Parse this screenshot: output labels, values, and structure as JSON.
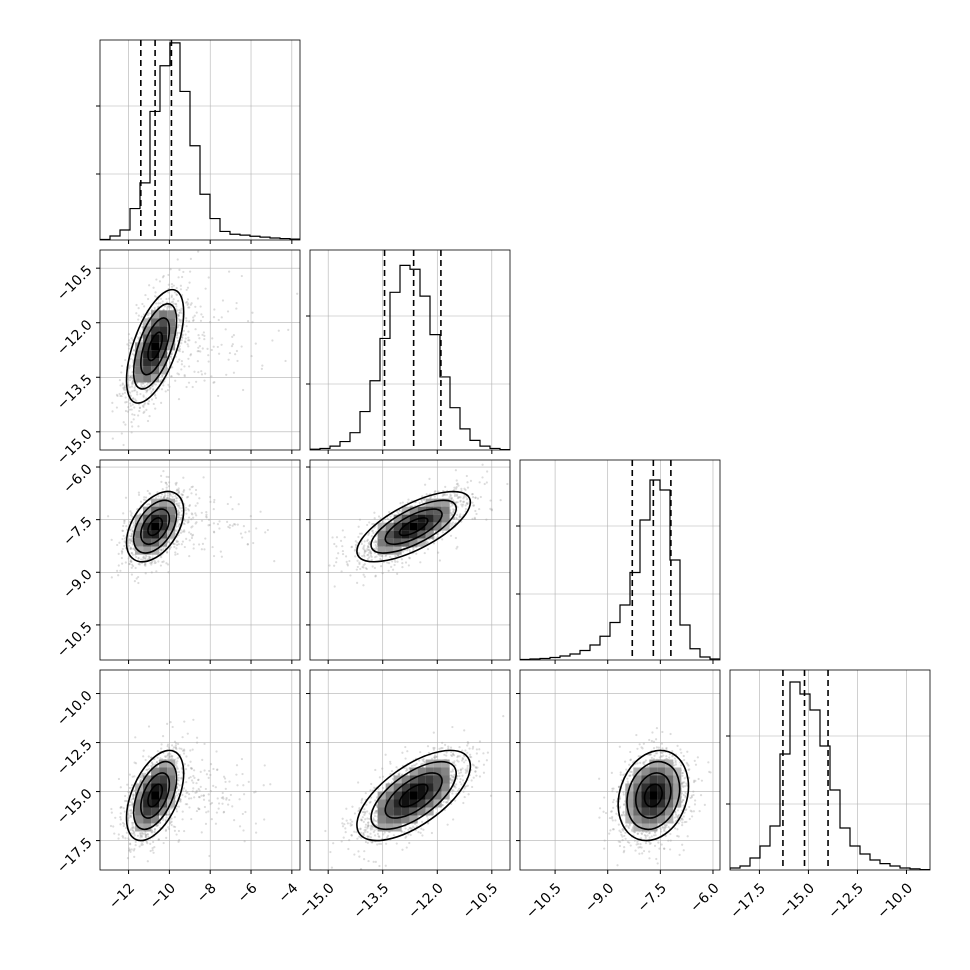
{
  "figure": {
    "background": "#ffffff",
    "point_color": "#9a9a9a",
    "line_color": "#000000",
    "grid_color": "#b0b0b0"
  },
  "chart_data": {
    "type": "corner",
    "grid": true,
    "n_params": 4,
    "diag_ticks": {
      "0": [
        -12,
        -10,
        -8,
        -6,
        -4
      ],
      "1": [
        -15.0,
        -13.5,
        -12.0,
        -10.5
      ],
      "2": [
        -10.5,
        -9.0,
        -7.5,
        -6.0
      ],
      "3": [
        -17.5,
        -15.0,
        -12.5,
        -10.0
      ]
    },
    "tick_labels": {
      "p0": [
        "−12",
        "−10",
        "−8",
        "−6",
        "−4"
      ],
      "p1": [
        "−15.0",
        "−13.5",
        "−12.0",
        "−10.5"
      ],
      "p2": [
        "−10.5",
        "−9.0",
        "−7.5",
        "−6.0"
      ],
      "p3": [
        "−17.5",
        "−15.0",
        "−12.5",
        "−10.0"
      ]
    },
    "params": [
      {
        "xlim": [
          -13.4,
          -3.6
        ],
        "ticks": [
          -12,
          -10,
          -8,
          -6,
          -4
        ],
        "median": -10.7,
        "q16": -11.4,
        "q84": -9.9,
        "sd": 0.7
      },
      {
        "xlim": [
          -15.5,
          -10.0
        ],
        "ticks": [
          -15.0,
          -13.5,
          -12.0,
          -10.5
        ],
        "median": -12.65,
        "q16": -13.45,
        "q84": -11.9,
        "sd": 0.78
      },
      {
        "xlim": [
          -11.5,
          -5.8
        ],
        "ticks": [
          -10.5,
          -9.0,
          -7.5,
          -6.0
        ],
        "median": -7.7,
        "q16": -8.3,
        "q84": -7.2,
        "sd": 0.5
      },
      {
        "xlim": [
          -19.0,
          -8.8
        ],
        "ticks": [
          -17.5,
          -15.0,
          -12.5,
          -10.0
        ],
        "median": -15.2,
        "q16": -16.3,
        "q84": -14.0,
        "sd": 1.15
      }
    ],
    "histograms": [
      {
        "param": 0,
        "bin_start": -13.4,
        "bin_width": 0.49,
        "counts": [
          2,
          14,
          35,
          110,
          200,
          450,
          610,
          690,
          520,
          330,
          160,
          75,
          30,
          20,
          17,
          13,
          10,
          7,
          5,
          3
        ],
        "ylim": [
          0,
          700
        ]
      },
      {
        "param": 1,
        "bin_start": -15.5,
        "bin_width": 0.275,
        "counts": [
          2,
          4,
          10,
          22,
          45,
          100,
          180,
          290,
          410,
          480,
          470,
          400,
          300,
          190,
          110,
          55,
          25,
          10,
          4,
          1
        ],
        "ylim": [
          0,
          520
        ]
      },
      {
        "param": 2,
        "bin_start": -11.5,
        "bin_width": 0.285,
        "counts": [
          2,
          4,
          6,
          10,
          16,
          24,
          38,
          60,
          95,
          150,
          220,
          350,
          560,
          720,
          680,
          400,
          140,
          45,
          12,
          4
        ],
        "ylim": [
          0,
          800
        ]
      },
      {
        "param": 3,
        "bin_start": -19.0,
        "bin_width": 0.51,
        "counts": [
          5,
          10,
          30,
          60,
          110,
          290,
          470,
          440,
          400,
          310,
          200,
          105,
          60,
          40,
          25,
          16,
          10,
          5,
          3,
          1
        ],
        "ylim": [
          0,
          500
        ]
      }
    ],
    "correlations": [
      [
        1.0,
        0.6,
        0.45,
        0.5
      ],
      [
        0.6,
        1.0,
        0.7,
        0.65
      ],
      [
        0.45,
        0.7,
        1.0,
        0.2
      ],
      [
        0.5,
        0.65,
        0.2,
        1.0
      ]
    ],
    "contour_levels": [
      0.5,
      1.0,
      1.5,
      2.0
    ]
  }
}
